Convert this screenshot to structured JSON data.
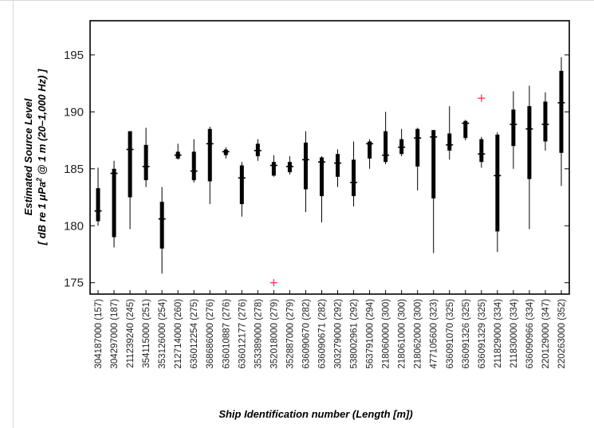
{
  "chart_data": {
    "type": "boxplot",
    "title": "",
    "ylabel_line1": "Estimated Source Level",
    "ylabel_line2_prefix": "[ dB re 1 μPa",
    "ylabel_line2_sup": "2",
    "ylabel_line2_suffix": " @ 1 m (20–1,000 Hz) ]",
    "xlabel": "Ship Identification number (Length [m])",
    "ylim": [
      174,
      198
    ],
    "yticks": [
      175,
      180,
      185,
      190,
      195
    ],
    "grid": false,
    "colors": {
      "box": "#000000",
      "outlier": "#ff3355",
      "axis": "#000000"
    },
    "categories": [
      "304187000 (157)",
      "304297000 (187)",
      "211239240 (245)",
      "354115000 (251)",
      "353126000 (254)",
      "212714000 (260)",
      "636012254 (275)",
      "368686000 (276)",
      "636010887 (276)",
      "636012177 (276)",
      "353389000 (278)",
      "352018000 (279)",
      "352887000 (279)",
      "636090670 (282)",
      "636090671 (282)",
      "303279000 (292)",
      "538002961 (292)",
      "563791000 (294)",
      "218060000 (300)",
      "218061000 (300)",
      "218062000 (300)",
      "477105600 (323)",
      "636091070 (325)",
      "636091326 (325)",
      "636091329 (325)",
      "211829000 (334)",
      "211830000 (334)",
      "636090966 (334)",
      "220129000 (347)",
      "220263000 (352)"
    ],
    "series": [
      {
        "boxes": [
          {
            "whisker_low": 180.0,
            "q1": 180.4,
            "median": 181.3,
            "q3": 183.3,
            "whisker_high": 185.1
          },
          {
            "whisker_low": 178.1,
            "q1": 179.0,
            "median": 184.6,
            "q3": 185.0,
            "whisker_high": 185.7
          },
          {
            "whisker_low": 179.7,
            "q1": 182.5,
            "median": 186.7,
            "q3": 188.3,
            "whisker_high": 188.3
          },
          {
            "whisker_low": 183.4,
            "q1": 184.0,
            "median": 185.2,
            "q3": 187.1,
            "whisker_high": 188.6
          },
          {
            "whisker_low": 175.8,
            "q1": 178.0,
            "median": 180.6,
            "q3": 182.1,
            "whisker_high": 183.4
          },
          {
            "whisker_low": 185.8,
            "q1": 185.9,
            "median": 186.2,
            "q3": 186.5,
            "whisker_high": 187.2
          },
          {
            "whisker_low": 183.8,
            "q1": 184.0,
            "median": 184.8,
            "q3": 186.5,
            "whisker_high": 187.6
          },
          {
            "whisker_low": 181.9,
            "q1": 183.9,
            "median": 187.2,
            "q3": 188.5,
            "whisker_high": 188.7
          },
          {
            "whisker_low": 185.9,
            "q1": 186.2,
            "median": 186.5,
            "q3": 186.7,
            "whisker_high": 186.9
          },
          {
            "whisker_low": 180.8,
            "q1": 181.9,
            "median": 184.2,
            "q3": 185.3,
            "whisker_high": 185.6
          },
          {
            "whisker_low": 185.7,
            "q1": 186.1,
            "median": 186.6,
            "q3": 187.2,
            "whisker_high": 187.6
          },
          {
            "whisker_low": 184.3,
            "q1": 184.4,
            "median": 185.3,
            "q3": 185.6,
            "whisker_high": 186.2
          },
          {
            "whisker_low": 184.5,
            "q1": 184.7,
            "median": 185.2,
            "q3": 185.6,
            "whisker_high": 186.1
          },
          {
            "whisker_low": 181.2,
            "q1": 183.2,
            "median": 185.8,
            "q3": 187.3,
            "whisker_high": 188.3
          },
          {
            "whisker_low": 180.3,
            "q1": 182.6,
            "median": 185.6,
            "q3": 186.0,
            "whisker_high": 186.1
          },
          {
            "whisker_low": 183.4,
            "q1": 184.3,
            "median": 185.5,
            "q3": 186.3,
            "whisker_high": 186.7
          },
          {
            "whisker_low": 181.7,
            "q1": 182.6,
            "median": 183.8,
            "q3": 185.8,
            "whisker_high": 187.4
          },
          {
            "whisker_low": 185.0,
            "q1": 185.9,
            "median": 187.2,
            "q3": 187.4,
            "whisker_high": 187.6
          },
          {
            "whisker_low": 185.4,
            "q1": 185.6,
            "median": 186.2,
            "q3": 188.3,
            "whisker_high": 190.0
          },
          {
            "whisker_low": 186.1,
            "q1": 186.3,
            "median": 186.9,
            "q3": 187.6,
            "whisker_high": 188.5
          },
          {
            "whisker_low": 183.1,
            "q1": 185.2,
            "median": 187.7,
            "q3": 188.5,
            "whisker_high": 188.6
          },
          {
            "whisker_low": 177.6,
            "q1": 182.4,
            "median": 187.8,
            "q3": 188.4,
            "whisker_high": 188.4
          },
          {
            "whisker_low": 185.8,
            "q1": 186.6,
            "median": 187.1,
            "q3": 188.1,
            "whisker_high": 190.5
          },
          {
            "whisker_low": 187.5,
            "q1": 187.7,
            "median": 189.0,
            "q3": 189.2,
            "whisker_high": 189.3
          },
          {
            "whisker_low": 185.1,
            "q1": 185.6,
            "median": 186.3,
            "q3": 187.6,
            "whisker_high": 187.8,
            "outliers": [
              191.2
            ]
          },
          {
            "whisker_low": 177.7,
            "q1": 179.5,
            "median": 184.4,
            "q3": 188.0,
            "whisker_high": 188.2
          },
          {
            "whisker_low": 185.0,
            "q1": 187.0,
            "median": 188.9,
            "q3": 190.2,
            "whisker_high": 191.8
          },
          {
            "whisker_low": 179.7,
            "q1": 184.1,
            "median": 188.5,
            "q3": 190.5,
            "whisker_high": 192.3
          },
          {
            "whisker_low": 186.6,
            "q1": 187.4,
            "median": 188.9,
            "q3": 190.9,
            "whisker_high": 191.7
          },
          {
            "whisker_low": 183.5,
            "q1": 186.4,
            "median": 190.8,
            "q3": 193.6,
            "whisker_high": 194.8
          }
        ]
      }
    ],
    "outliers": [
      {
        "category": "352018000 (279)",
        "value": 175.0
      },
      {
        "category": "636091329 (325)",
        "value": 191.2
      }
    ]
  }
}
